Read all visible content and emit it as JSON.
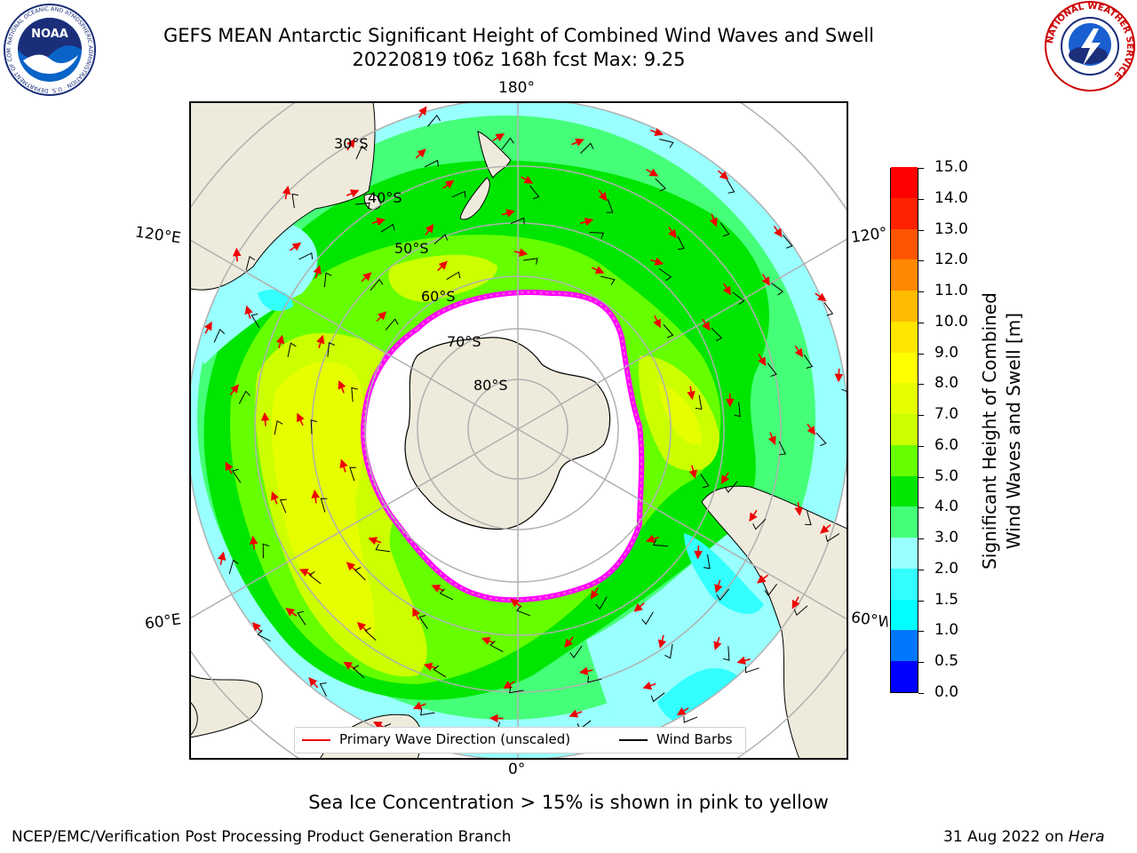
{
  "title_line1": "GEFS MEAN Antarctic Significant Height of Combined Wind Waves and Swell",
  "title_line2": "20220819 t06z 168h fcst   Max: 9.25",
  "logos": {
    "noaa_text": "NOAA",
    "noaa_ring": "NATIONAL OCEANIC AND ATMOSPHERIC ADMINISTRATION · U.S. DEPARTMENT OF COMMERCE",
    "nws_ring": "NATIONAL WEATHER SERVICE"
  },
  "map": {
    "longitude_labels": {
      "top": "180°",
      "upper_left": "120°E",
      "upper_right": "120°",
      "lower_left": "60°E",
      "lower_right": "60°W",
      "bottom": "0°"
    },
    "latitude_labels": [
      "30°S",
      "40°S",
      "50°S",
      "60°S",
      "70°S",
      "80°S"
    ],
    "wave_arrow_color": "#ee0000",
    "wind_barb_color": "#000000",
    "sea_ice_colors": [
      "#ff00ff",
      "#ff66cc",
      "#ffcc33"
    ],
    "land_color": "#efebdc"
  },
  "colorbar": {
    "label_line1": "Significant Height of Combined",
    "label_line2": "Wind Waves and Swell [m]",
    "ticks": [
      "0.0",
      "0.5",
      "1.0",
      "1.5",
      "2.0",
      "3.0",
      "4.0",
      "5.0",
      "6.0",
      "7.0",
      "8.0",
      "9.0",
      "10.0",
      "11.0",
      "12.0",
      "13.0",
      "14.0",
      "15.0"
    ],
    "colors": [
      "#0000ff",
      "#0077ff",
      "#00ffff",
      "#33ffff",
      "#99ffff",
      "#44ff77",
      "#00e600",
      "#66ff00",
      "#ccff00",
      "#e6ff00",
      "#ffff00",
      "#ffe600",
      "#ffbb00",
      "#ff8800",
      "#ff5500",
      "#ff2200",
      "#ff0000"
    ]
  },
  "legend": {
    "wave_label": "Primary Wave Direction (unscaled)",
    "wind_label": "Wind Barbs"
  },
  "note": "Sea Ice Concentration > 15% is shown in pink to yellow",
  "footer_left": "NCEP/EMC/Verification Post Processing Product Generation Branch",
  "footer_date": "31 Aug 2022 on",
  "footer_machine": "Hera"
}
